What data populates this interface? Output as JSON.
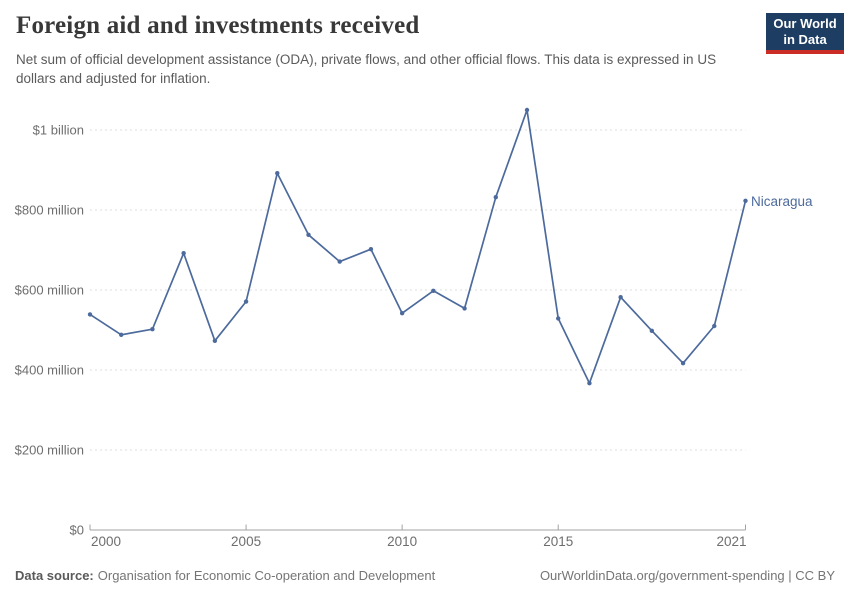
{
  "chart_data": {
    "type": "line",
    "title": "Foreign aid and investments received",
    "subtitle": "Net sum of official development assistance (ODA), private flows, and other official flows. This data is expressed in US dollars and adjusted for inflation.",
    "entity": "Nicaragua",
    "unit": "US$ (millions)",
    "x": [
      2000,
      2001,
      2002,
      2003,
      2004,
      2005,
      2006,
      2007,
      2008,
      2009,
      2010,
      2011,
      2012,
      2013,
      2014,
      2015,
      2016,
      2017,
      2018,
      2019,
      2020,
      2021
    ],
    "values": [
      539,
      488,
      502,
      692,
      473,
      571,
      892,
      738,
      671,
      702,
      542,
      598,
      554,
      832,
      1050,
      529,
      367,
      582,
      498,
      417,
      510,
      823
    ],
    "xlim": [
      2000,
      2021
    ],
    "ylim": [
      0,
      1050
    ],
    "grid": true,
    "legend": "entity label at end of line",
    "y_ticks": [
      {
        "value": 0,
        "label": "$0"
      },
      {
        "value": 200,
        "label": "$200 million"
      },
      {
        "value": 400,
        "label": "$400 million"
      },
      {
        "value": 600,
        "label": "$600 million"
      },
      {
        "value": 800,
        "label": "$800 million"
      },
      {
        "value": 1000,
        "label": "$1 billion"
      }
    ],
    "x_ticks": [
      {
        "value": 2000,
        "label": "2000",
        "align": "start"
      },
      {
        "value": 2005,
        "label": "2005",
        "align": "middle"
      },
      {
        "value": 2010,
        "label": "2010",
        "align": "middle"
      },
      {
        "value": 2015,
        "label": "2015",
        "align": "middle"
      },
      {
        "value": 2021,
        "label": "2021",
        "align": "end"
      }
    ]
  },
  "logo": {
    "line1": "Our World",
    "line2": "in Data"
  },
  "footer": {
    "source_label": "Data source:",
    "source_value": "Organisation for Economic Co-operation and Development",
    "credit": "OurWorldinData.org/government-spending | CC BY"
  },
  "colors": {
    "line": "#4C6A9C",
    "grid": "#dedede",
    "axis": "#a3a3a3",
    "tick_text": "#6e6e6e",
    "title": "#383838",
    "subtitle": "#5b5b5b",
    "footer": "#757575",
    "logo_bg": "#1d3d63",
    "logo_accent": "#cb2d26"
  }
}
